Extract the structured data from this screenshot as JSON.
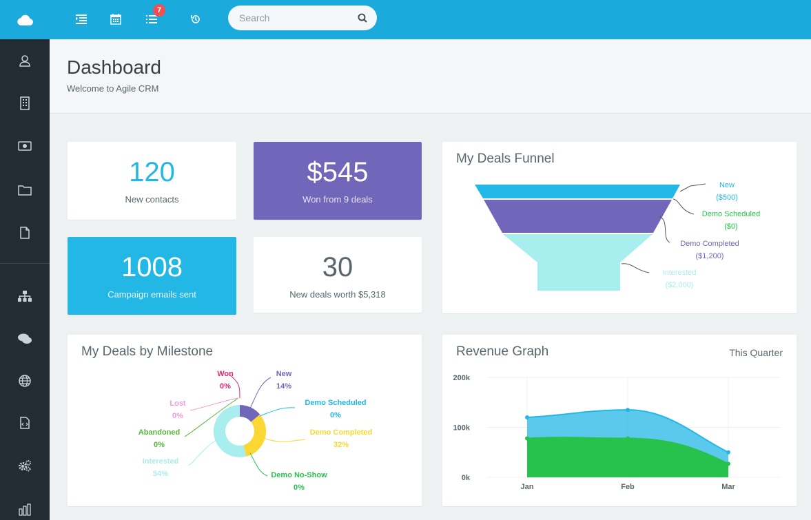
{
  "topbar": {
    "task_badge_count": "7",
    "search": {
      "placeholder": "Search"
    }
  },
  "header": {
    "title": "Dashboard",
    "subtitle": "Welcome to Agile CRM"
  },
  "stats": [
    {
      "value": "120",
      "label": "New contacts",
      "bg": "#ffffff",
      "value_color": "#23b7e5",
      "label_color": "#58666e"
    },
    {
      "value": "$545",
      "label": "Won from 9 deals",
      "bg": "#7266ba",
      "value_color": "#ffffff",
      "label_color": "#e6e3f3"
    },
    {
      "value": "1008",
      "label": "Campaign emails sent",
      "bg": "#23b7e5",
      "value_color": "#ffffff",
      "label_color": "#e6f6fc"
    },
    {
      "value": "30",
      "label": "New deals worth $5,318",
      "bg": "#ffffff",
      "value_color": "#58666e",
      "label_color": "#58666e"
    }
  ],
  "funnel": {
    "title": "My Deals Funnel",
    "stages": [
      {
        "name": "New",
        "value": "($500)",
        "color": "#23b7e5"
      },
      {
        "name": "Demo Scheduled",
        "value": "($0)",
        "color": "#27c24c"
      },
      {
        "name": "Demo Completed",
        "value": "($1,200)",
        "color": "#7266ba"
      },
      {
        "name": "Interested",
        "value": "($2,000)",
        "color": "#a9eeee"
      }
    ]
  },
  "milestone": {
    "title": "My Deals by Milestone",
    "slices": [
      {
        "name": "Won",
        "pct": "0%",
        "color": "#e8246b"
      },
      {
        "name": "New",
        "pct": "14%",
        "color": "#7266ba"
      },
      {
        "name": "Demo Scheduled",
        "pct": "0%",
        "color": "#23b7e5"
      },
      {
        "name": "Demo Completed",
        "pct": "32%",
        "color": "#fad733"
      },
      {
        "name": "Demo No-Show",
        "pct": "0%",
        "color": "#27c24c"
      },
      {
        "name": "Interested",
        "pct": "54%",
        "color": "#a9eeee"
      },
      {
        "name": "Abandoned",
        "pct": "0%",
        "color": "#56b83a"
      },
      {
        "name": "Lost",
        "pct": "0%",
        "color": "#f19ad6"
      }
    ]
  },
  "revenue": {
    "title": "Revenue Graph",
    "range": "This Quarter"
  },
  "chart_data": [
    {
      "type": "area",
      "x": [
        "Jan",
        "Feb",
        "Mar"
      ],
      "ylim": [
        0,
        200000
      ],
      "yticks": [
        "0k",
        "100k",
        "200k"
      ],
      "grid": true,
      "series": [
        {
          "values": [
            120000,
            135000,
            50000
          ],
          "color": "#23b7e5"
        },
        {
          "values": [
            78000,
            78000,
            27000
          ],
          "color": "#27c24c"
        }
      ]
    },
    {
      "type": "pie",
      "categories": [
        "Won",
        "New",
        "Demo Scheduled",
        "Demo Completed",
        "Demo No-Show",
        "Interested",
        "Abandoned",
        "Lost"
      ],
      "values": [
        0,
        14,
        0,
        32,
        0,
        54,
        0,
        0
      ]
    }
  ]
}
